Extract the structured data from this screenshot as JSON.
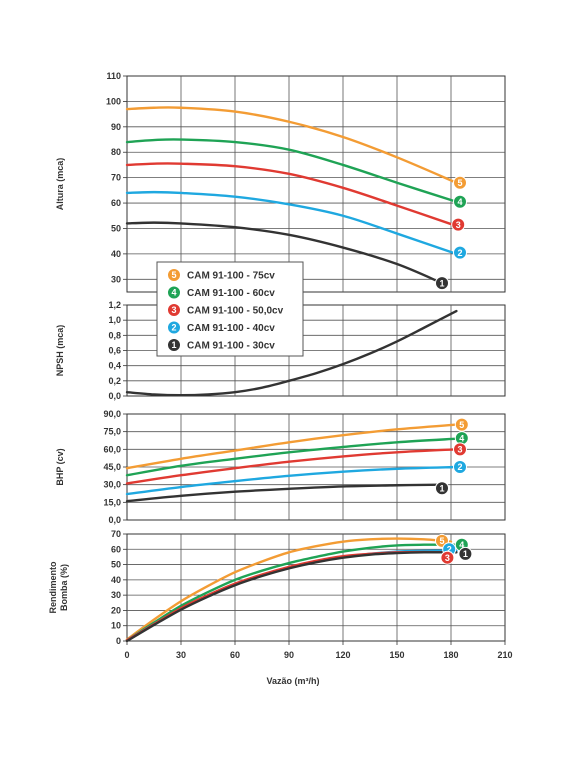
{
  "chart_data": {
    "type": "line",
    "xlabel": "Vazão (m³/h)",
    "xlim": [
      0,
      210
    ],
    "xticks": [
      0,
      30,
      60,
      90,
      120,
      150,
      180,
      210
    ],
    "legend": {
      "placement": "inside-left",
      "entries": [
        {
          "num": "5",
          "label": "CAM 91-100 - 75cv",
          "color": "#F39C34"
        },
        {
          "num": "4",
          "label": "CAM 91-100 - 60cv",
          "color": "#1FA355"
        },
        {
          "num": "3",
          "label": "CAM 91-100 - 50,0cv",
          "color": "#E03A32"
        },
        {
          "num": "2",
          "label": "CAM 91-100 - 40cv",
          "color": "#1FA8E0"
        },
        {
          "num": "1",
          "label": "CAM 91-100 - 30cv",
          "color": "#333333"
        }
      ]
    },
    "panels": [
      {
        "id": "altura",
        "ylabel": "Altura (mca)",
        "ylim": [
          25,
          110
        ],
        "yticks": [
          "30",
          "40",
          "50",
          "60",
          "70",
          "80",
          "90",
          "100",
          "110"
        ],
        "ytick_values": [
          30,
          40,
          50,
          60,
          70,
          80,
          90,
          100,
          110
        ],
        "series": [
          {
            "num": "5",
            "color": "#F39C34",
            "x": [
              0,
              15,
              30,
              60,
              90,
              120,
              150,
              183
            ],
            "y": [
              97,
              97.5,
              97.5,
              96,
              92,
              86,
              78,
              68
            ]
          },
          {
            "num": "4",
            "color": "#1FA355",
            "x": [
              0,
              15,
              30,
              60,
              90,
              120,
              150,
              183
            ],
            "y": [
              84,
              84.8,
              85,
              84,
              81,
              75,
              68,
              60.5
            ]
          },
          {
            "num": "3",
            "color": "#E03A32",
            "x": [
              0,
              15,
              30,
              60,
              90,
              120,
              150,
              183
            ],
            "y": [
              75,
              75.5,
              75.5,
              74.5,
              71.5,
              66,
              59,
              51
            ]
          },
          {
            "num": "2",
            "color": "#1FA8E0",
            "x": [
              0,
              15,
              30,
              60,
              90,
              120,
              150,
              183
            ],
            "y": [
              64,
              64.3,
              64,
              62.5,
              59.5,
              55,
              48,
              40
            ]
          },
          {
            "num": "1",
            "color": "#333333",
            "x": [
              0,
              15,
              30,
              60,
              90,
              120,
              150,
              175
            ],
            "y": [
              52,
              52.3,
              52,
              50.5,
              47.5,
              42.5,
              36,
              28.5
            ]
          }
        ],
        "markers": [
          {
            "num": "5",
            "color": "#F39C34",
            "x": 185,
            "y": 68
          },
          {
            "num": "4",
            "color": "#1FA355",
            "x": 185,
            "y": 60.5
          },
          {
            "num": "3",
            "color": "#E03A32",
            "x": 184,
            "y": 51.5
          },
          {
            "num": "2",
            "color": "#1FA8E0",
            "x": 185,
            "y": 40.5
          },
          {
            "num": "1",
            "color": "#333333",
            "x": 175,
            "y": 28.5
          }
        ]
      },
      {
        "id": "npsh",
        "ylabel": "NPSH (mca)",
        "ylim": [
          0,
          1.2
        ],
        "yticks": [
          "0,0",
          "0,2",
          "0,4",
          "0,6",
          "0,8",
          "1,0",
          "1,2"
        ],
        "ytick_values": [
          0,
          0.2,
          0.4,
          0.6,
          0.8,
          1.0,
          1.2
        ],
        "series": [
          {
            "num": "1",
            "color": "#333333",
            "x": [
              0,
              15,
              30,
              45,
              60,
              75,
              90,
              105,
              120,
              135,
              150,
              165,
              183
            ],
            "y": [
              0.05,
              0.02,
              0.01,
              0.02,
              0.05,
              0.11,
              0.2,
              0.3,
              0.42,
              0.56,
              0.72,
              0.9,
              1.12
            ]
          }
        ],
        "markers": []
      },
      {
        "id": "bhp",
        "ylabel": "BHP (cv)",
        "ylim": [
          0,
          90
        ],
        "yticks": [
          "0,0",
          "15,0",
          "30,0",
          "45,0",
          "60,0",
          "75,0",
          "90,0"
        ],
        "ytick_values": [
          0,
          15,
          30,
          45,
          60,
          75,
          90
        ],
        "series": [
          {
            "num": "5",
            "color": "#F39C34",
            "x": [
              0,
              30,
              60,
              90,
              120,
              150,
              183
            ],
            "y": [
              44,
              52,
              59,
              66,
              72,
              77,
              81
            ]
          },
          {
            "num": "4",
            "color": "#1FA355",
            "x": [
              0,
              30,
              60,
              90,
              120,
              150,
              183
            ],
            "y": [
              38,
              46,
              52,
              57.5,
              62,
              66,
              69
            ]
          },
          {
            "num": "3",
            "color": "#E03A32",
            "x": [
              0,
              30,
              60,
              90,
              120,
              150,
              183
            ],
            "y": [
              31,
              38,
              44,
              49.5,
              54,
              57.5,
              60
            ]
          },
          {
            "num": "2",
            "color": "#1FA8E0",
            "x": [
              0,
              30,
              60,
              90,
              120,
              150,
              183
            ],
            "y": [
              22,
              28,
              33,
              37.5,
              41,
              43.5,
              45
            ]
          },
          {
            "num": "1",
            "color": "#333333",
            "x": [
              0,
              30,
              60,
              90,
              120,
              150,
              175
            ],
            "y": [
              16,
              20.5,
              24,
              26.5,
              28.5,
              29.5,
              30
            ]
          }
        ],
        "markers": [
          {
            "num": "5",
            "color": "#F39C34",
            "x": 186,
            "y": 81
          },
          {
            "num": "4",
            "color": "#1FA355",
            "x": 186,
            "y": 69.5
          },
          {
            "num": "3",
            "color": "#E03A32",
            "x": 185,
            "y": 60
          },
          {
            "num": "2",
            "color": "#1FA8E0",
            "x": 185,
            "y": 45
          },
          {
            "num": "1",
            "color": "#333333",
            "x": 175,
            "y": 27
          }
        ]
      },
      {
        "id": "rendimento",
        "ylabel": "Rendimento Bomba (%)",
        "ylim": [
          0,
          70
        ],
        "yticks": [
          "0",
          "10",
          "20",
          "30",
          "40",
          "50",
          "60",
          "70"
        ],
        "ytick_values": [
          0,
          10,
          20,
          30,
          40,
          50,
          60,
          70
        ],
        "series": [
          {
            "num": "5",
            "color": "#F39C34",
            "x": [
              0,
              15,
              30,
              45,
              60,
              75,
              90,
              105,
              120,
              135,
              150,
              165,
              180
            ],
            "y": [
              1,
              14,
              26,
              36,
              45,
              52,
              58,
              62,
              65,
              66.5,
              67,
              66.5,
              65
            ]
          },
          {
            "num": "4",
            "color": "#1FA355",
            "x": [
              0,
              15,
              30,
              45,
              60,
              75,
              90,
              105,
              120,
              135,
              150,
              165,
              183
            ],
            "y": [
              0.5,
              12,
              23,
              32,
              40,
              46,
              51,
              55,
              58.5,
              61,
              62.5,
              63,
              63
            ]
          },
          {
            "num": "2",
            "color": "#1FA8E0",
            "x": [
              0,
              15,
              30,
              45,
              60,
              75,
              90,
              105,
              120,
              135,
              150,
              165,
              183
            ],
            "y": [
              0.5,
              11,
              21,
              29.5,
              37,
              43,
              48,
              52,
              55,
              57,
              58.5,
              59,
              59
            ]
          },
          {
            "num": "3",
            "color": "#E03A32",
            "x": [
              0,
              15,
              30,
              45,
              60,
              75,
              90,
              105,
              120,
              135,
              150,
              165,
              180
            ],
            "y": [
              0.5,
              11,
              21.5,
              30,
              37.5,
              43.5,
              48.5,
              52.5,
              55.5,
              57,
              58,
              58.2,
              58
            ]
          },
          {
            "num": "1",
            "color": "#333333",
            "x": [
              0,
              15,
              30,
              45,
              60,
              75,
              90,
              105,
              120,
              135,
              150,
              165,
              183
            ],
            "y": [
              0,
              10.5,
              20.5,
              29,
              36.5,
              42.5,
              47.5,
              51.5,
              54.5,
              56.5,
              57.5,
              58,
              58
            ]
          }
        ],
        "markers": [
          {
            "num": "5",
            "color": "#F39C34",
            "x": 175,
            "y": 65.5
          },
          {
            "num": "4",
            "color": "#1FA355",
            "x": 186,
            "y": 63
          },
          {
            "num": "2",
            "color": "#1FA8E0",
            "x": 179,
            "y": 60
          },
          {
            "num": "1",
            "color": "#333333",
            "x": 188,
            "y": 57
          },
          {
            "num": "3",
            "color": "#E03A32",
            "x": 178,
            "y": 54.5
          }
        ]
      }
    ]
  }
}
